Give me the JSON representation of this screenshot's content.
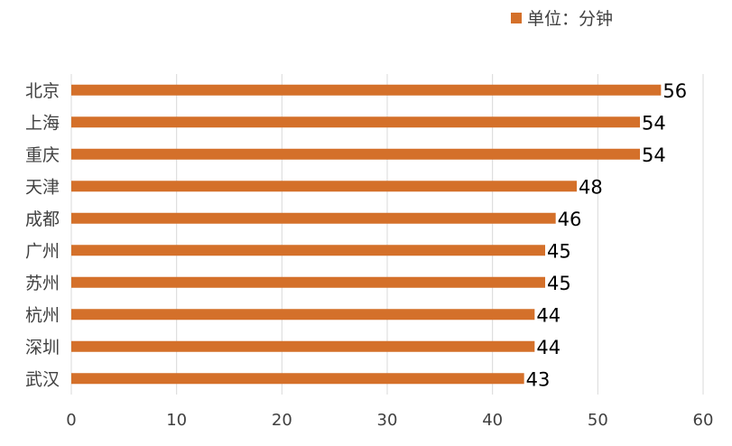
{
  "chart_data": {
    "type": "bar",
    "orientation": "horizontal",
    "categories": [
      "北京",
      "上海",
      "重庆",
      "天津",
      "成都",
      "广州",
      "苏州",
      "杭州",
      "深圳",
      "武汉"
    ],
    "series": [
      {
        "name": "单位：分钟",
        "values": [
          56,
          54,
          54,
          48,
          46,
          45,
          45,
          44,
          44,
          43
        ],
        "color": "#D4702A"
      }
    ],
    "xlim": [
      0,
      60
    ],
    "xticks": [
      0,
      10,
      20,
      30,
      40,
      50,
      60
    ],
    "grid": "vertical",
    "legend": "top-right"
  }
}
